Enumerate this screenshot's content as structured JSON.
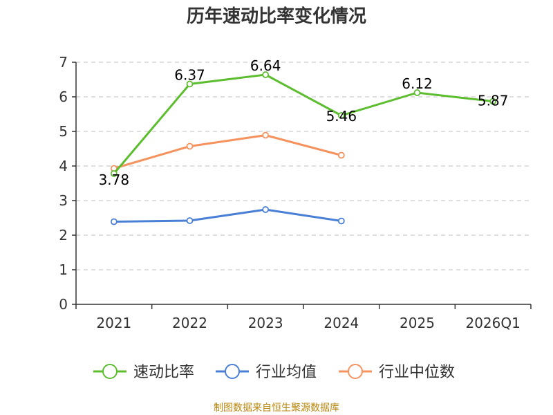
{
  "chart_data": {
    "type": "line",
    "title": "历年速动比率变化情况",
    "categories": [
      "2021",
      "2022",
      "2023",
      "2024",
      "2025",
      "2026Q1"
    ],
    "ylim": [
      0,
      7
    ],
    "yticks": [
      "0",
      "1",
      "2",
      "3",
      "4",
      "5",
      "6",
      "7"
    ],
    "grid": true,
    "series": [
      {
        "name": "速动比率",
        "color": "#5cbd2e",
        "values": [
          3.78,
          6.37,
          6.64,
          5.46,
          6.12,
          5.87
        ],
        "labels": [
          "3.78",
          "6.37",
          "6.64",
          "5.46",
          "6.12",
          "5.87"
        ]
      },
      {
        "name": "行业均值",
        "color": "#4a7fd6",
        "values": [
          2.39,
          2.42,
          2.74,
          2.41,
          null,
          null
        ]
      },
      {
        "name": "行业中位数",
        "color": "#f5925e",
        "values": [
          3.93,
          4.57,
          4.89,
          4.31,
          null,
          null
        ]
      }
    ],
    "legend_position": "bottom",
    "source": "制图数据来自恒生聚源数据库"
  }
}
